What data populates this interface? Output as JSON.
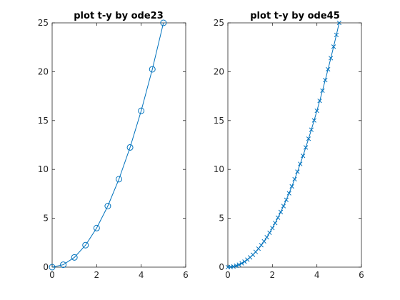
{
  "chart_data": [
    {
      "type": "line",
      "title": "plot t-y by ode23",
      "xlabel": "",
      "ylabel": "",
      "xlim": [
        0,
        6
      ],
      "ylim": [
        0,
        25
      ],
      "xticks": [
        0,
        2,
        4,
        6
      ],
      "yticks": [
        0,
        5,
        10,
        15,
        20,
        25
      ],
      "grid": false,
      "marker": "o",
      "color": "#0072bd",
      "series": [
        {
          "x": [
            0,
            0.5,
            1,
            1.5,
            2,
            2.5,
            3,
            3.5,
            4,
            4.5,
            5
          ],
          "y": [
            0,
            0.25,
            1,
            2.25,
            4,
            6.25,
            9,
            12.25,
            16,
            20.25,
            25
          ]
        }
      ]
    },
    {
      "type": "line",
      "title": "plot t-y by ode45",
      "xlabel": "",
      "ylabel": "",
      "xlim": [
        0,
        6
      ],
      "ylim": [
        0,
        25
      ],
      "xticks": [
        0,
        2,
        4,
        6
      ],
      "yticks": [
        0,
        5,
        10,
        15,
        20,
        25
      ],
      "grid": false,
      "marker": "x",
      "color": "#0072bd",
      "series": [
        {
          "x": [
            0,
            0.125,
            0.25,
            0.375,
            0.5,
            0.625,
            0.75,
            0.875,
            1,
            1.125,
            1.25,
            1.375,
            1.5,
            1.625,
            1.75,
            1.875,
            2,
            2.125,
            2.25,
            2.375,
            2.5,
            2.625,
            2.75,
            2.875,
            3,
            3.125,
            3.25,
            3.375,
            3.5,
            3.625,
            3.75,
            3.875,
            4,
            4.125,
            4.25,
            4.375,
            4.5,
            4.625,
            4.75,
            4.875,
            5
          ],
          "y": [
            0,
            0.016,
            0.063,
            0.141,
            0.25,
            0.391,
            0.563,
            0.766,
            1,
            1.266,
            1.563,
            1.891,
            2.25,
            2.641,
            3.063,
            3.516,
            4,
            4.516,
            5.063,
            5.641,
            6.25,
            6.891,
            7.563,
            8.266,
            9,
            9.766,
            10.563,
            11.391,
            12.25,
            13.141,
            14.063,
            15.016,
            16,
            17.016,
            18.063,
            19.141,
            20.25,
            21.391,
            22.563,
            23.766,
            25
          ]
        }
      ]
    }
  ]
}
